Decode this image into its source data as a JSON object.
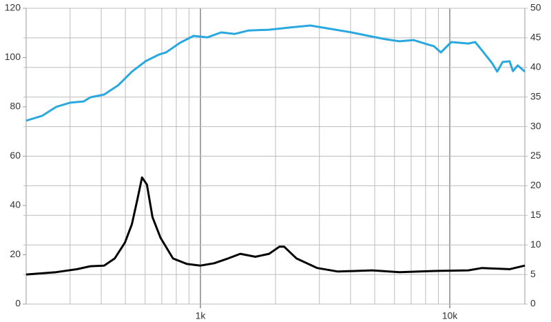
{
  "chart_data": {
    "type": "line",
    "log_x": true,
    "grid": true,
    "minor_grid": true,
    "xlim": [
      200,
      20000
    ],
    "xticks": [
      {
        "value": 1000,
        "label": "1k"
      },
      {
        "value": 10000,
        "label": "10k"
      }
    ],
    "ylim": [
      0,
      120
    ],
    "yticks": [
      0,
      20,
      40,
      60,
      80,
      100,
      120
    ],
    "y2lim": [
      0,
      50
    ],
    "y2ticks": [
      0,
      5,
      10,
      15,
      20,
      25,
      30,
      35,
      40,
      45,
      50
    ],
    "series": [
      {
        "color": "#29a8e0",
        "x": [
          200,
          232,
          264,
          300,
          340,
          362,
          411,
          467,
          531,
          602,
          684,
          728,
          827,
          939,
          1066,
          1210,
          1373,
          1559,
          1885,
          2281,
          2758,
          3337,
          4036,
          4884,
          5544,
          6294,
          7145,
          8112,
          8643,
          9208,
          10137,
          11865,
          12645,
          13464,
          14814,
          15495,
          16299,
          17372,
          17914,
          18735,
          20000
        ],
        "values": [
          74.4,
          76.4,
          80.0,
          81.7,
          82.2,
          83.9,
          85.0,
          88.7,
          94.3,
          98.5,
          101.3,
          102.1,
          106.0,
          108.8,
          108.2,
          110.2,
          109.6,
          111.0,
          111.3,
          112.2,
          113.0,
          111.6,
          110.2,
          108.5,
          107.4,
          106.6,
          107.1,
          105.4,
          104.6,
          102.1,
          106.3,
          105.7,
          106.3,
          102.9,
          97.6,
          94.3,
          98.2,
          98.5,
          94.5,
          96.8,
          94.3
        ]
      },
      {
        "color": "#000000",
        "axis": "y2",
        "x": [
          200,
          264,
          320,
          362,
          411,
          453,
          498,
          531,
          558,
          583,
          610,
          642,
          692,
          776,
          881,
          1000,
          1135,
          1289,
          1445,
          1661,
          1885,
          2073,
          2167,
          2430,
          2940,
          3556,
          4884,
          6294,
          8643,
          11865,
          13464,
          17372,
          20000
        ],
        "values": [
          5.0,
          5.4,
          5.9,
          6.4,
          6.5,
          7.7,
          10.4,
          13.5,
          17.6,
          21.4,
          20.2,
          14.7,
          11.2,
          7.7,
          6.8,
          6.5,
          6.9,
          7.7,
          8.5,
          8.0,
          8.5,
          9.7,
          9.7,
          7.7,
          6.1,
          5.5,
          5.7,
          5.4,
          5.6,
          5.7,
          6.1,
          5.9,
          6.5
        ]
      }
    ]
  }
}
